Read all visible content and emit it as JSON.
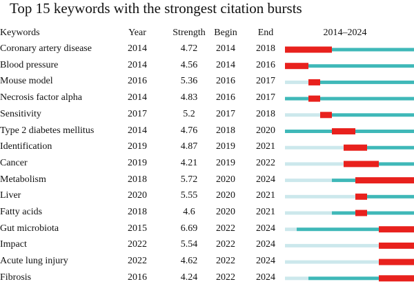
{
  "title": "Top 15 keywords with the strongest citation bursts",
  "headers": {
    "keywords": "Keywords",
    "year": "Year",
    "strength": "Strength",
    "begin": "Begin",
    "end": "End",
    "range": "2014–2024"
  },
  "colors": {
    "burst": "#e8211d",
    "active": "#3fb8b8",
    "before": "#cce8ec"
  },
  "chart_data": {
    "type": "table",
    "title": "Top 15 keywords with the strongest citation bursts",
    "timeline_start": 2014,
    "timeline_end": 2024,
    "columns": [
      "Keywords",
      "Year",
      "Strength",
      "Begin",
      "End",
      "2014–2024"
    ],
    "rows": [
      {
        "keyword": "Coronary artery disease",
        "year": "2014",
        "strength": "4.72",
        "begin": "2014",
        "end": "2018"
      },
      {
        "keyword": "Blood pressure",
        "year": "2014",
        "strength": "4.56",
        "begin": "2014",
        "end": "2016"
      },
      {
        "keyword": "Mouse model",
        "year": "2016",
        "strength": "5.36",
        "begin": "2016",
        "end": "2017"
      },
      {
        "keyword": "Necrosis factor alpha",
        "year": "2014",
        "strength": "4.83",
        "begin": "2016",
        "end": "2017"
      },
      {
        "keyword": "Sensitivity",
        "year": "2017",
        "strength": "5.2",
        "begin": "2017",
        "end": "2018"
      },
      {
        "keyword": "Type 2 diabetes mellitus",
        "year": "2014",
        "strength": "4.76",
        "begin": "2018",
        "end": "2020"
      },
      {
        "keyword": "Identification",
        "year": "2019",
        "strength": "4.87",
        "begin": "2019",
        "end": "2021"
      },
      {
        "keyword": "Cancer",
        "year": "2019",
        "strength": "4.21",
        "begin": "2019",
        "end": "2022"
      },
      {
        "keyword": "Metabolism",
        "year": "2018",
        "strength": "5.72",
        "begin": "2020",
        "end": "2024"
      },
      {
        "keyword": "Liver",
        "year": "2020",
        "strength": "5.55",
        "begin": "2020",
        "end": "2021"
      },
      {
        "keyword": "Fatty acids",
        "year": "2018",
        "strength": "4.6",
        "begin": "2020",
        "end": "2021"
      },
      {
        "keyword": "Gut microbiota",
        "year": "2015",
        "strength": "6.69",
        "begin": "2022",
        "end": "2024"
      },
      {
        "keyword": "Impact",
        "year": "2022",
        "strength": "5.54",
        "begin": "2022",
        "end": "2024"
      },
      {
        "keyword": "Acute lung injury",
        "year": "2022",
        "strength": "4.62",
        "begin": "2022",
        "end": "2024"
      },
      {
        "keyword": "Fibrosis",
        "year": "2016",
        "strength": "4.24",
        "begin": "2022",
        "end": "2024"
      }
    ]
  }
}
